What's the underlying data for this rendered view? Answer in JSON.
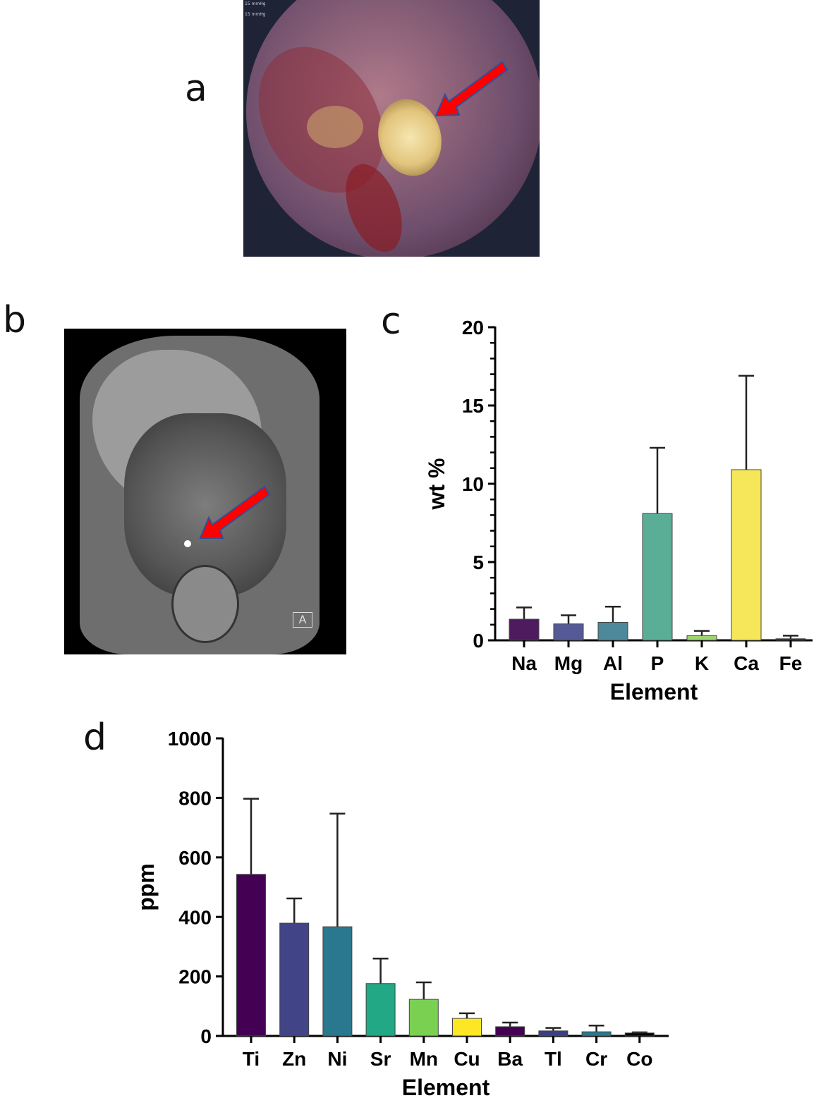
{
  "panels": {
    "a": {
      "label": "a",
      "description": "Laparoscopic view of yellow calculus with red arrow",
      "overlay_text": [
        "15 mmHg",
        "15 mmHg"
      ],
      "arrow_color": "#ff0000"
    },
    "b": {
      "label": "b",
      "description": "Coronal CT of abdomen with red arrow pointing to calcified stone",
      "orientation_marker": "A",
      "arrow_color": "#ff0000"
    },
    "c": {
      "label": "c"
    },
    "d": {
      "label": "d"
    }
  },
  "chart_data": [
    {
      "id": "c",
      "type": "bar",
      "title": "",
      "xlabel": "Element",
      "ylabel": "wt %",
      "ylim": [
        0,
        20
      ],
      "yticks": [
        0,
        5,
        10,
        15,
        20
      ],
      "minor_ticks_per_major": 4,
      "grid": false,
      "categories": [
        "Na",
        "Mg",
        "Al",
        "P",
        "K",
        "Ca",
        "Fe"
      ],
      "values": [
        1.35,
        1.05,
        1.15,
        8.1,
        0.3,
        10.9,
        0.1
      ],
      "error_upper": [
        2.1,
        1.6,
        2.15,
        12.3,
        0.6,
        16.9,
        0.3
      ],
      "colors": [
        "#4f1b5f",
        "#555995",
        "#4e889b",
        "#5bae96",
        "#9dd46f",
        "#f6e65a",
        "#4a1860"
      ]
    },
    {
      "id": "d",
      "type": "bar",
      "title": "",
      "xlabel": "Element",
      "ylabel": "ppm",
      "ylim": [
        0,
        1000
      ],
      "yticks": [
        0,
        200,
        400,
        600,
        800,
        1000
      ],
      "grid": false,
      "categories": [
        "Ti",
        "Zn",
        "Ni",
        "Sr",
        "Mn",
        "Cu",
        "Ba",
        "Tl",
        "Cr",
        "Co"
      ],
      "values": [
        543,
        379,
        367,
        176,
        123,
        59,
        31,
        17,
        14,
        10
      ],
      "error_upper": [
        797,
        462,
        747,
        260,
        180,
        76,
        45,
        27,
        35,
        12
      ],
      "colors": [
        "#440154",
        "#414487",
        "#2a788e",
        "#22a884",
        "#7ad151",
        "#fde725",
        "#440154",
        "#3b3f85",
        "#2a788e",
        "#000000"
      ]
    }
  ]
}
